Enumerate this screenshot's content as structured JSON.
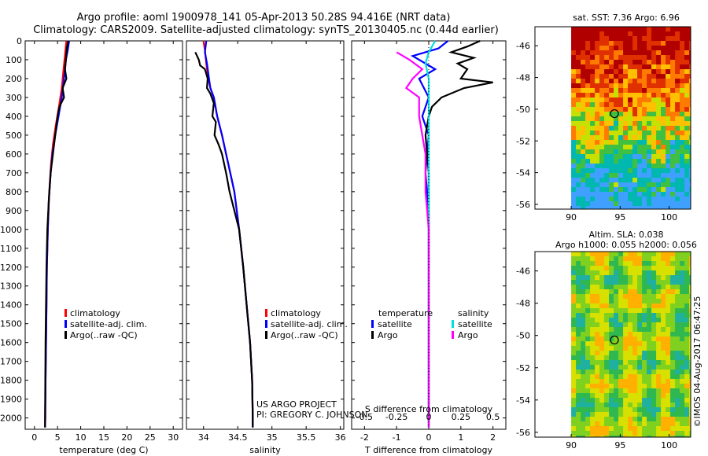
{
  "titles": {
    "line1": "Argo profile: aoml 1900978_141 05-Apr-2013 50.28S 94.416E (NRT data)",
    "line2": "Climatology: CARS2009. Satellite-adjusted climatology: synTS_20130405.nc (0.44d earlier)"
  },
  "colors": {
    "climatology": "#ff0000",
    "satellite_adj": "#0000ff",
    "argo": "#000000",
    "sat_diff_temp": "#0000ff",
    "sat_diff_sal": "#00e0e0",
    "argo_diff_sal": "#ff00ff"
  },
  "chart_data": [
    {
      "type": "line",
      "name": "temperature-profile",
      "xlabel": "temperature (deg C)",
      "xlim": [
        -2,
        32
      ],
      "xticks": [
        0,
        5,
        10,
        15,
        20,
        25,
        30
      ],
      "ylim": [
        2060,
        0
      ],
      "yticks": [
        0,
        100,
        200,
        300,
        400,
        500,
        600,
        700,
        800,
        900,
        1000,
        1100,
        1200,
        1300,
        1400,
        1500,
        1600,
        1700,
        1800,
        1900,
        2000
      ],
      "legend": [
        "climatology",
        "satellite-adj. clim.",
        "Argo(..raw -QC)"
      ],
      "series": [
        {
          "name": "climatology",
          "color": "#ff0000",
          "points": [
            [
              6.9,
              0
            ],
            [
              6.7,
              50
            ],
            [
              6.3,
              150
            ],
            [
              5.9,
              250
            ],
            [
              5.3,
              350
            ],
            [
              4.6,
              450
            ],
            [
              4.0,
              550
            ],
            [
              3.6,
              650
            ],
            [
              3.2,
              800
            ],
            [
              2.9,
              1000
            ],
            [
              2.7,
              1200
            ],
            [
              2.6,
              1400
            ],
            [
              2.5,
              1600
            ],
            [
              2.4,
              1800
            ],
            [
              2.3,
              2000
            ],
            [
              2.3,
              2050
            ]
          ]
        },
        {
          "name": "satellite-adj. clim.",
          "color": "#0000ff",
          "points": [
            [
              7.5,
              0
            ],
            [
              7.2,
              50
            ],
            [
              6.8,
              100
            ],
            [
              6.4,
              200
            ],
            [
              5.9,
              300
            ],
            [
              5.2,
              400
            ],
            [
              4.5,
              500
            ],
            [
              3.9,
              600
            ],
            [
              3.5,
              700
            ],
            [
              3.1,
              850
            ],
            [
              2.9,
              1000
            ],
            [
              2.7,
              1200
            ],
            [
              2.6,
              1400
            ],
            [
              2.5,
              1600
            ],
            [
              2.4,
              1800
            ],
            [
              2.35,
              2000
            ],
            [
              2.3,
              2050
            ]
          ]
        },
        {
          "name": "Argo(..raw -QC)",
          "color": "#000000",
          "points": [
            [
              7.3,
              0
            ],
            [
              7.0,
              40
            ],
            [
              6.8,
              100
            ],
            [
              6.6,
              150
            ],
            [
              6.9,
              200
            ],
            [
              6.1,
              250
            ],
            [
              6.4,
              300
            ],
            [
              5.4,
              350
            ],
            [
              5.0,
              400
            ],
            [
              4.5,
              500
            ],
            [
              4.0,
              600
            ],
            [
              3.5,
              700
            ],
            [
              3.1,
              850
            ],
            [
              2.8,
              1000
            ],
            [
              2.6,
              1200
            ],
            [
              2.5,
              1400
            ],
            [
              2.4,
              1600
            ],
            [
              2.35,
              1800
            ],
            [
              2.3,
              2000
            ],
            [
              2.3,
              2050
            ]
          ]
        }
      ]
    },
    {
      "type": "line",
      "name": "salinity-profile",
      "xlabel": "salinity",
      "xlim": [
        33.75,
        36.05
      ],
      "xticks": [
        34,
        34.5,
        35,
        35.5,
        36
      ],
      "ylim": [
        2060,
        0
      ],
      "legend": [
        "climatology",
        "satellite-adj. clim.",
        "Argo(..raw -QC)"
      ],
      "series": [
        {
          "name": "climatology",
          "color": "#ff0000",
          "points": [
            [
              34.0,
              0
            ],
            [
              34.02,
              50
            ],
            [
              34.04,
              120
            ],
            [
              34.07,
              200
            ],
            [
              34.1,
              250
            ],
            [
              34.15,
              300
            ],
            [
              34.2,
              400
            ],
            [
              34.27,
              500
            ],
            [
              34.33,
              600
            ],
            [
              34.39,
              700
            ],
            [
              34.45,
              800
            ],
            [
              34.52,
              1000
            ],
            [
              34.58,
              1200
            ],
            [
              34.63,
              1400
            ],
            [
              34.68,
              1600
            ],
            [
              34.71,
              1800
            ],
            [
              34.72,
              2000
            ],
            [
              34.72,
              2050
            ]
          ]
        },
        {
          "name": "satellite-adj. clim.",
          "color": "#0000ff",
          "points": [
            [
              34.04,
              0
            ],
            [
              34.02,
              60
            ],
            [
              34.05,
              120
            ],
            [
              34.08,
              200
            ],
            [
              34.1,
              250
            ],
            [
              34.15,
              300
            ],
            [
              34.2,
              400
            ],
            [
              34.27,
              500
            ],
            [
              34.33,
              600
            ],
            [
              34.39,
              700
            ],
            [
              34.45,
              800
            ],
            [
              34.52,
              1000
            ],
            [
              34.58,
              1200
            ],
            [
              34.63,
              1400
            ],
            [
              34.68,
              1600
            ],
            [
              34.71,
              1800
            ],
            [
              34.72,
              2000
            ],
            [
              34.72,
              2050
            ]
          ]
        },
        {
          "name": "Argo(..raw -QC)",
          "color": "#000000",
          "points": [
            [
              33.88,
              60
            ],
            [
              33.93,
              100
            ],
            [
              33.95,
              130
            ],
            [
              34.02,
              150
            ],
            [
              34.06,
              200
            ],
            [
              34.05,
              250
            ],
            [
              34.1,
              280
            ],
            [
              34.15,
              330
            ],
            [
              34.13,
              400
            ],
            [
              34.18,
              430
            ],
            [
              34.16,
              500
            ],
            [
              34.22,
              550
            ],
            [
              34.27,
              600
            ],
            [
              34.33,
              700
            ],
            [
              34.38,
              800
            ],
            [
              34.45,
              900
            ],
            [
              34.52,
              1000
            ],
            [
              34.58,
              1200
            ],
            [
              34.63,
              1400
            ],
            [
              34.68,
              1600
            ],
            [
              34.71,
              1800
            ],
            [
              34.72,
              2000
            ],
            [
              34.72,
              2050
            ]
          ]
        }
      ]
    },
    {
      "type": "line",
      "name": "difference-profile",
      "xlabel": "T difference from climatology",
      "xlabel_top": "S difference from climatology",
      "xlim": [
        -2.4,
        2.4
      ],
      "xticks": [
        -2,
        -1,
        0,
        1,
        2
      ],
      "xticks_s": [
        -0.5,
        -0.25,
        0,
        0.25,
        0.5
      ],
      "ylim": [
        2060,
        0
      ],
      "legend": {
        "temperature": [
          "satellite",
          "Argo"
        ],
        "salinity": [
          "satellite",
          "Argo"
        ]
      },
      "series": [
        {
          "name": "temperature satellite",
          "color": "#0000ff",
          "points": [
            [
              0.6,
              0
            ],
            [
              0.3,
              40
            ],
            [
              -0.5,
              80
            ],
            [
              0.2,
              150
            ],
            [
              -0.3,
              200
            ],
            [
              0.0,
              300
            ],
            [
              -0.2,
              400
            ],
            [
              0.0,
              500
            ],
            [
              -0.1,
              700
            ],
            [
              0.0,
              900
            ],
            [
              0.0,
              1200
            ],
            [
              0.0,
              1600
            ],
            [
              0.0,
              2050
            ]
          ]
        },
        {
          "name": "temperature Argo",
          "color": "#000000",
          "points": [
            [
              1.6,
              0
            ],
            [
              1.2,
              30
            ],
            [
              0.7,
              60
            ],
            [
              1.4,
              90
            ],
            [
              0.9,
              120
            ],
            [
              1.2,
              150
            ],
            [
              1.0,
              200
            ],
            [
              2.0,
              220
            ],
            [
              1.1,
              250
            ],
            [
              0.4,
              300
            ],
            [
              0.1,
              350
            ],
            [
              0.0,
              400
            ],
            [
              -0.1,
              500
            ],
            [
              0.0,
              700
            ],
            [
              0.0,
              1000
            ],
            [
              0.0,
              1500
            ],
            [
              0.0,
              2050
            ]
          ]
        },
        {
          "name": "salinity satellite",
          "color": "#00e0e0",
          "points": [
            [
              0.2,
              0
            ],
            [
              0.0,
              60
            ],
            [
              -0.1,
              120
            ],
            [
              0.0,
              200
            ],
            [
              0.0,
              400
            ],
            [
              0.0,
              700
            ],
            [
              0.0,
              1000
            ],
            [
              0.0,
              1300
            ],
            [
              0.0,
              1600
            ],
            [
              0.0,
              2050
            ]
          ]
        },
        {
          "name": "salinity Argo",
          "color": "#ff00ff",
          "points": [
            [
              -1.0,
              60
            ],
            [
              -0.6,
              100
            ],
            [
              -0.2,
              150
            ],
            [
              -0.5,
              200
            ],
            [
              -0.7,
              250
            ],
            [
              -0.3,
              300
            ],
            [
              -0.3,
              400
            ],
            [
              -0.2,
              500
            ],
            [
              -0.1,
              600
            ],
            [
              -0.1,
              700
            ],
            [
              -0.1,
              800
            ],
            [
              -0.05,
              900
            ],
            [
              0.0,
              1000
            ],
            [
              0.0,
              2050
            ]
          ]
        }
      ]
    },
    {
      "type": "heatmap",
      "name": "sst-map",
      "title": "sat. SST: 7.36 Argo: 6.96",
      "xticks": [
        90,
        95,
        100
      ],
      "yticks": [
        -46,
        -48,
        -50,
        -52,
        -54,
        -56
      ],
      "xlim": [
        86.3,
        102.2
      ],
      "ylim": [
        -56.3,
        -44.8
      ],
      "marker": {
        "lon": 94.416,
        "lat": -50.28
      }
    },
    {
      "type": "heatmap",
      "name": "sla-map",
      "title": "Altim. SLA: 0.038",
      "subtitle": "Argo h1000: 0.055 h2000: 0.056",
      "xticks": [
        90,
        95,
        100
      ],
      "yticks": [
        -46,
        -48,
        -50,
        -52,
        -54,
        -56
      ],
      "xlim": [
        86.3,
        102.2
      ],
      "ylim": [
        -56.3,
        -44.8
      ],
      "marker": {
        "lon": 94.416,
        "lat": -50.28
      }
    }
  ],
  "legend_labels": {
    "climatology": "climatology",
    "satellite_adj": "satellite-adj. clim.",
    "argo": "Argo(..raw -QC)",
    "temperature_head": "temperature",
    "salinity_head": "salinity",
    "satellite": "satellite",
    "argo_short": "Argo"
  },
  "credits": {
    "project": "US ARGO PROJECT",
    "pi": "PI: GREGORY C. JOHNSON",
    "stamp": "©IMOS 04-Aug-2017 06:47:25"
  }
}
